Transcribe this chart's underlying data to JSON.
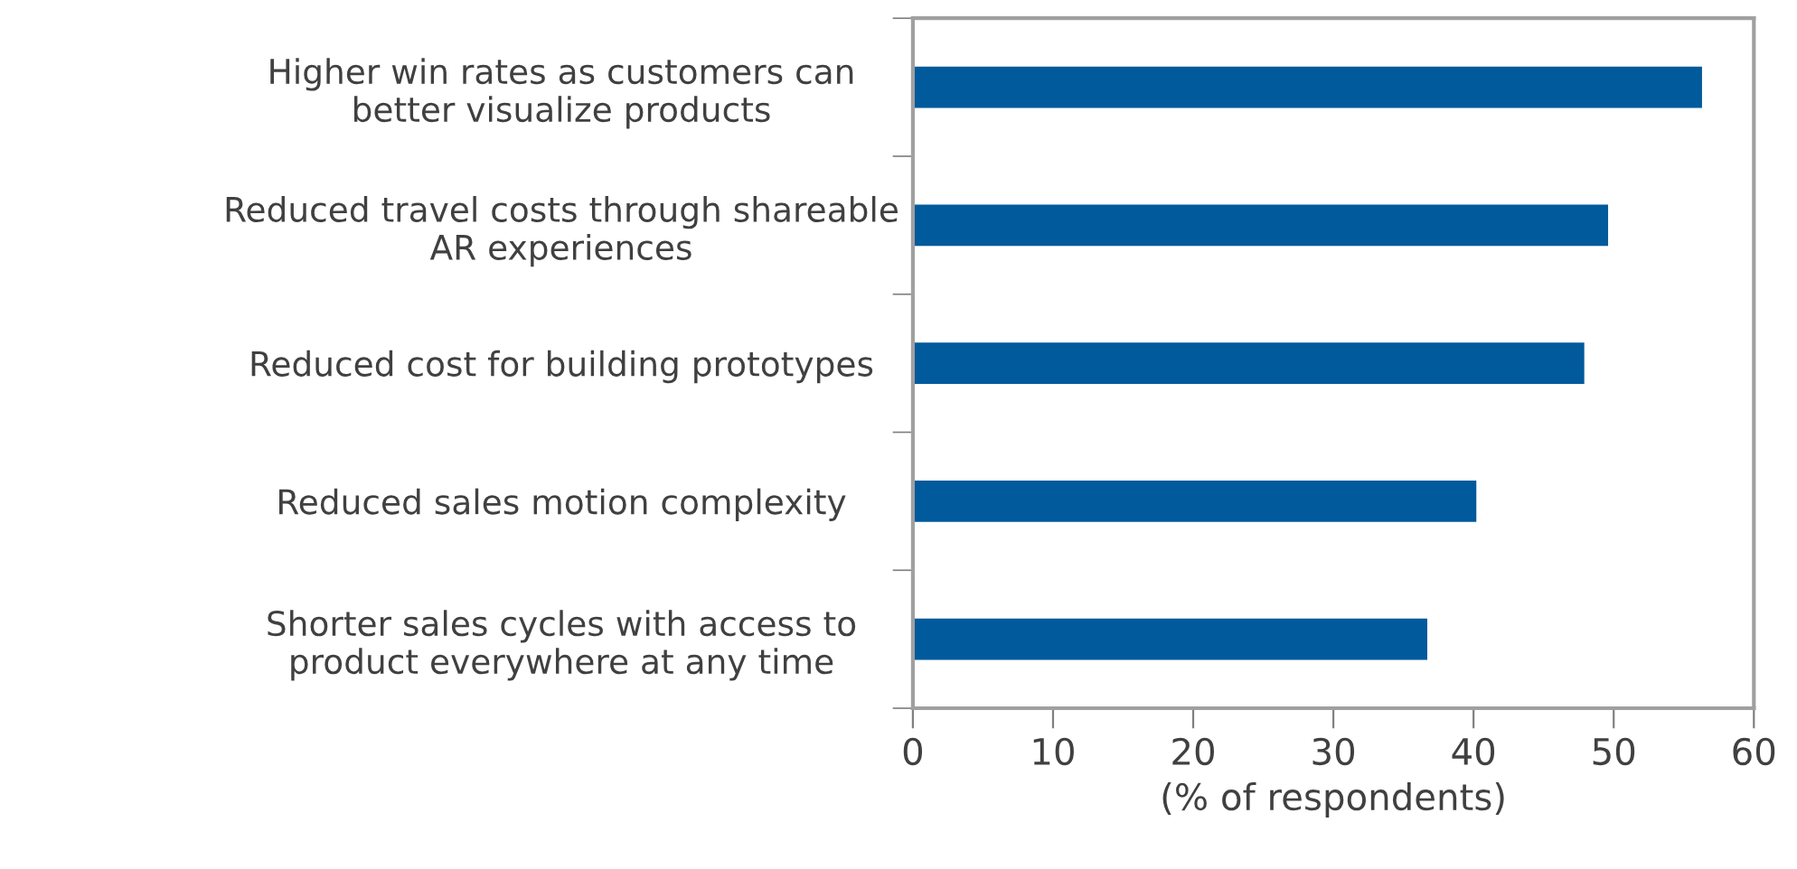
{
  "chart_data": {
    "type": "bar",
    "orientation": "horizontal",
    "categories": [
      "Higher win rates as customers can\nbetter visualize products",
      "Reduced travel costs through shareable\nAR experiences",
      "Reduced cost for building prototypes",
      "Reduced sales motion complexity",
      "Shorter sales cycles with access to\nproduct everywhere at any time"
    ],
    "values": [
      56.3,
      49.6,
      47.9,
      40.2,
      36.7
    ],
    "color": "#005a9c",
    "xlim": [
      0,
      60
    ],
    "xticks": [
      0,
      10,
      20,
      30,
      40,
      50,
      60
    ],
    "xlabel": "(% of respondents)",
    "grid": false,
    "legend": false
  }
}
